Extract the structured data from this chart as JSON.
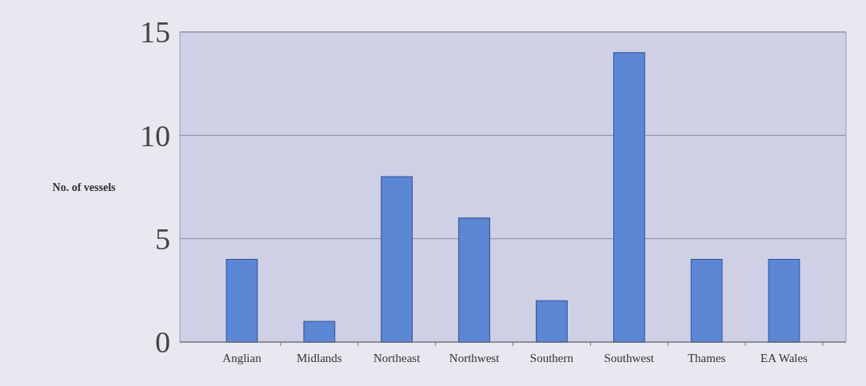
{
  "chart_data": {
    "type": "bar",
    "ylabel": "No. of vessels",
    "categories": [
      "Anglian",
      "Midlands",
      "Northeast",
      "Northwest",
      "Southern",
      "Southwest",
      "Thames",
      "EA Wales"
    ],
    "values": [
      4,
      1,
      8,
      6,
      2,
      14,
      4,
      4
    ],
    "color": "#5b87d4",
    "ylim": [
      0,
      15
    ],
    "yticks": [
      0,
      5,
      10,
      15
    ],
    "grid": "y"
  }
}
